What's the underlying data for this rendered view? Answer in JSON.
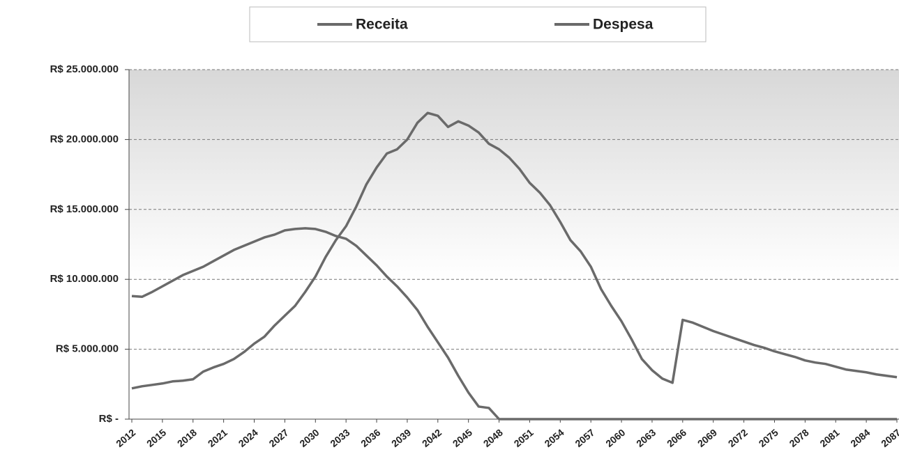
{
  "chart_data": {
    "type": "line",
    "x": [
      2012,
      2013,
      2014,
      2015,
      2016,
      2017,
      2018,
      2019,
      2020,
      2021,
      2022,
      2023,
      2024,
      2025,
      2026,
      2027,
      2028,
      2029,
      2030,
      2031,
      2032,
      2033,
      2034,
      2035,
      2036,
      2037,
      2038,
      2039,
      2040,
      2041,
      2042,
      2043,
      2044,
      2045,
      2046,
      2047,
      2048,
      2049,
      2050,
      2051,
      2052,
      2053,
      2054,
      2055,
      2056,
      2057,
      2058,
      2059,
      2060,
      2061,
      2062,
      2063,
      2064,
      2065,
      2066,
      2067,
      2068,
      2069,
      2070,
      2071,
      2072,
      2073,
      2074,
      2075,
      2076,
      2077,
      2078,
      2079,
      2080,
      2081,
      2082,
      2083,
      2084,
      2085,
      2086,
      2087
    ],
    "series": [
      {
        "name": "Receita",
        "color": "#6a6a6a",
        "values": [
          8800000,
          8750000,
          9100000,
          9500000,
          9900000,
          10300000,
          10600000,
          10900000,
          11300000,
          11700000,
          12100000,
          12400000,
          12700000,
          13000000,
          13200000,
          13500000,
          13600000,
          13650000,
          13600000,
          13400000,
          13100000,
          12900000,
          12400000,
          11700000,
          11000000,
          10200000,
          9500000,
          8700000,
          7800000,
          6600000,
          5500000,
          4400000,
          3100000,
          1900000,
          900000,
          800000,
          0,
          0,
          0,
          0,
          0,
          0,
          0,
          0,
          0,
          0,
          0,
          0,
          0,
          0,
          0,
          0,
          0,
          0,
          0,
          0,
          0,
          0,
          0,
          0,
          0,
          0,
          0,
          0,
          0,
          0,
          0,
          0,
          0,
          0,
          0,
          0,
          0,
          0,
          0,
          0
        ]
      },
      {
        "name": "Despesa",
        "color": "#6a6a6a",
        "values": [
          2200000,
          2350000,
          2450000,
          2550000,
          2700000,
          2750000,
          2850000,
          3400000,
          3700000,
          3950000,
          4300000,
          4800000,
          5400000,
          5900000,
          6700000,
          7400000,
          8100000,
          9100000,
          10200000,
          11600000,
          12800000,
          13800000,
          15200000,
          16800000,
          18000000,
          19000000,
          19300000,
          20000000,
          21200000,
          21900000,
          21700000,
          20900000,
          21300000,
          21000000,
          20500000,
          19700000,
          19300000,
          18700000,
          17900000,
          16900000,
          16200000,
          15300000,
          14100000,
          12800000,
          12000000,
          10900000,
          9300000,
          8100000,
          7000000,
          5700000,
          4300000,
          3500000,
          2900000,
          2600000,
          7100000,
          6900000,
          6600000,
          6300000,
          6050000,
          5800000,
          5550000,
          5300000,
          5100000,
          4850000,
          4650000,
          4450000,
          4200000,
          4050000,
          3950000,
          3750000,
          3550000,
          3450000,
          3350000,
          3200000,
          3100000,
          3000000
        ]
      }
    ],
    "xlim": [
      2012,
      2087
    ],
    "xticks": [
      2012,
      2015,
      2018,
      2021,
      2024,
      2027,
      2030,
      2033,
      2036,
      2039,
      2042,
      2045,
      2048,
      2051,
      2054,
      2057,
      2060,
      2063,
      2066,
      2069,
      2072,
      2075,
      2078,
      2081,
      2084,
      2087
    ],
    "ylim": [
      0,
      25000000
    ],
    "yticks": [
      {
        "value": 0,
        "label": "R$ -"
      },
      {
        "value": 5000000,
        "label": "R$ 5.000.000"
      },
      {
        "value": 10000000,
        "label": "R$ 10.000.000"
      },
      {
        "value": 15000000,
        "label": "R$ 15.000.000"
      },
      {
        "value": 20000000,
        "label": "R$ 20.000.000"
      },
      {
        "value": 25000000,
        "label": "R$ 25.000.000"
      }
    ],
    "grid": true,
    "legend": "top"
  }
}
